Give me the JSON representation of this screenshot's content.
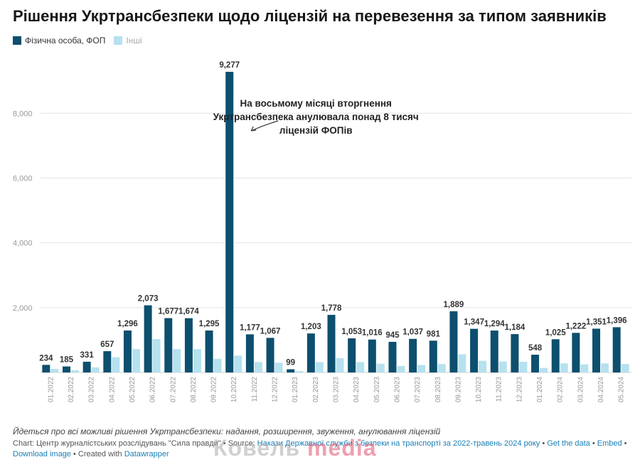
{
  "title": "Рішення Укртрансбезпеки щодо ліцензій на перевезення за типом заявників",
  "colors": {
    "primary": "#0d4f6e",
    "secondary": "#b6e1ef",
    "axis_text": "#999999",
    "grid": "#e4e4e4"
  },
  "chart_data": {
    "type": "bar",
    "categories": [
      "01.2022",
      "02.2022",
      "03.2022",
      "04.2022",
      "05.2022",
      "06.2022",
      "07.2022",
      "08.2022",
      "09.2022",
      "10.2022",
      "11.2022",
      "12.2022",
      "01.2023",
      "02.2023",
      "03.2023",
      "04.2023",
      "05.2023",
      "06.2023",
      "07.2023",
      "08.2023",
      "09.2023",
      "10.2023",
      "11.2023",
      "12.2023",
      "01.2024",
      "02.2024",
      "03.2024",
      "04.2024",
      "05.2024"
    ],
    "series": [
      {
        "name": "Фізична особа, ФОП",
        "values": [
          234,
          185,
          331,
          657,
          1296,
          2073,
          1677,
          1674,
          1295,
          9277,
          1177,
          1067,
          99,
          1203,
          1778,
          1053,
          1016,
          945,
          1037,
          981,
          1889,
          1347,
          1294,
          1184,
          548,
          1025,
          1222,
          1351,
          1396
        ],
        "labels": [
          "234",
          "185",
          "331",
          "657",
          "1,296",
          "2,073",
          "1,677",
          "1,674",
          "1,295",
          "9,277",
          "1,177",
          "1,067",
          "99",
          "1,203",
          "1,778",
          "1,053",
          "1,016",
          "945",
          "1,037",
          "981",
          "1,889",
          "1,347",
          "1,294",
          "1,184",
          "548",
          "1,025",
          "1,222",
          "1,351",
          "1,396"
        ]
      },
      {
        "name": "Інші",
        "values": [
          110,
          70,
          160,
          470,
          720,
          1030,
          720,
          720,
          420,
          520,
          320,
          300,
          40,
          320,
          440,
          320,
          270,
          200,
          230,
          260,
          560,
          360,
          340,
          330,
          140,
          280,
          250,
          280,
          260
        ]
      }
    ],
    "ylim": [
      0,
      9300
    ],
    "yticks": [
      2000,
      4000,
      6000,
      8000
    ],
    "ytick_labels": [
      "2,000",
      "4,000",
      "6,000",
      "8,000"
    ],
    "grid": true,
    "legend": "top-left",
    "annotation": {
      "lines": [
        "На восьмому місяці вторгнення",
        "Укртрансбезпека анулювала понад 8 тисяч",
        "ліцензій ФОПів"
      ],
      "target_index": 9
    }
  },
  "footer": {
    "note": "Йдеться про всі можливі рішення Укртрансбезпеки: надання, розширення, звуження, анулювання ліцензій",
    "chart_credit": "Chart: Центр журналістських розслідувань \"Сила правди\"",
    "sep": " • ",
    "source_label": "Source: ",
    "source_text": "Накази Державної служби з безпеки на транспорті за 2022-травень 2024 року",
    "get_data": "Get the data",
    "embed": "Embed",
    "download": "Download image",
    "created_with": "Created with ",
    "datawrapper": "Datawrapper"
  },
  "watermark": {
    "part1": "Ковель",
    "part2": "media"
  }
}
